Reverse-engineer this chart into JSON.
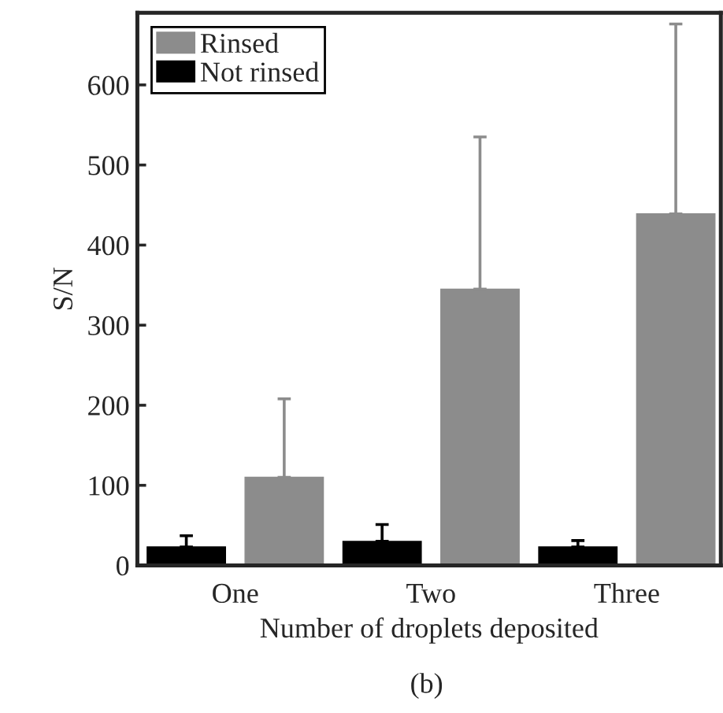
{
  "chart_data": {
    "type": "bar",
    "xlabel": "Number of droplets deposited",
    "ylabel": "S/N",
    "categories": [
      "One",
      "Two",
      "Three"
    ],
    "series": [
      {
        "name": "Not rinsed",
        "color": "#000000",
        "values": [
          23,
          30,
          23
        ],
        "errors": [
          [
            23,
            37
          ],
          [
            30,
            51
          ],
          [
            23,
            31
          ]
        ]
      },
      {
        "name": "Rinsed",
        "color": "#8c8c8c",
        "values": [
          110,
          345,
          439
        ],
        "errors": [
          [
            110,
            208
          ],
          [
            345,
            535
          ],
          [
            439,
            676
          ]
        ]
      }
    ],
    "ylim": [
      0,
      690
    ],
    "yticks": [
      0,
      100,
      200,
      300,
      400,
      500,
      600
    ],
    "grid": false,
    "legend": "top left",
    "annotations": [
      "(b)"
    ]
  }
}
